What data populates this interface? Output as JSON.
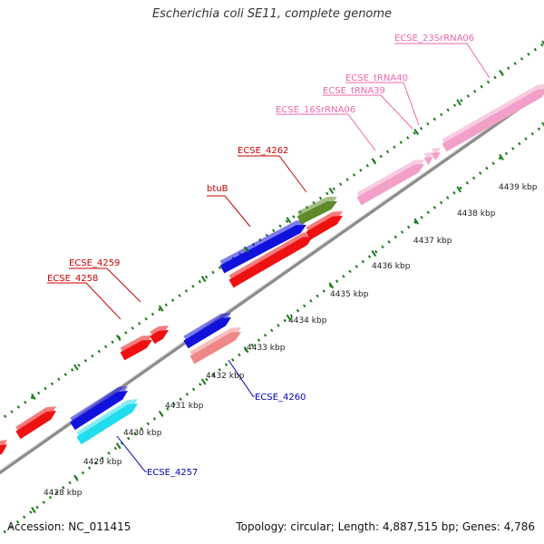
{
  "title": "Escherichia coli SE11, complete genome",
  "accession": "Accession: NC_011415",
  "summary": "Topology: circular; Length: 4,887,515 bp; Genes: 4,786",
  "backbone_color": "#8c8c8c",
  "tick_color": "#1a7a1a",
  "kbp_labels": [
    "4428 kbp",
    "4429 kbp",
    "4430 kbp",
    "4431 kbp",
    "4432 kbp",
    "4433 kbp",
    "4434 kbp",
    "4435 kbp",
    "4436 kbp",
    "4437 kbp",
    "4438 kbp",
    "4439 kbp"
  ],
  "gene_labels": {
    "ecse_4258": "ECSE_4258",
    "ecse_4259": "ECSE_4259",
    "btub": "btuB",
    "ecse_4262": "ECSE_4262",
    "ecse_16srrna06": "ECSE_16SrRNA06",
    "ecse_trna39": "ECSE_tRNA39",
    "ecse_trna40": "ECSE_tRNA40",
    "ecse_23srrna06": "ECSE_23SrRNA06",
    "ecse_4260": "ECSE_4260",
    "ecse_4257": "ECSE_4257"
  },
  "colors": {
    "red": "#ee1111",
    "blue": "#1111dd",
    "olive": "#5e8a2a",
    "pink": "#f2a0c8",
    "salmon": "#ee8888",
    "cyan": "#22ddee",
    "label_red": "#cc0000",
    "label_blue": "#0000bb",
    "label_pink": "#ee66aa"
  }
}
